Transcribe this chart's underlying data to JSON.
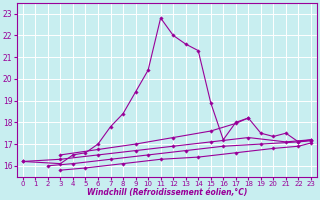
{
  "background_color": "#c8eef0",
  "grid_color": "#ffffff",
  "line_color": "#990099",
  "xlabel": "Windchill (Refroidissement éolien,°C)",
  "xlim": [
    -0.5,
    23.5
  ],
  "ylim": [
    15.5,
    23.5
  ],
  "yticks": [
    16,
    17,
    18,
    19,
    20,
    21,
    22,
    23
  ],
  "xticks": [
    0,
    1,
    2,
    3,
    4,
    5,
    6,
    7,
    8,
    9,
    10,
    11,
    12,
    13,
    14,
    15,
    16,
    17,
    18,
    19,
    20,
    21,
    22,
    23
  ],
  "series": [
    {
      "x": [
        0,
        3,
        4,
        5,
        6,
        7,
        8,
        9,
        10,
        11,
        12,
        13,
        14,
        15,
        16,
        17,
        18
      ],
      "y": [
        16.2,
        16.1,
        16.5,
        16.6,
        17.0,
        17.8,
        18.4,
        19.4,
        20.4,
        22.8,
        22.0,
        21.6,
        21.3,
        18.9,
        17.2,
        18.0,
        18.2
      ]
    },
    {
      "x": [
        0,
        3,
        6,
        9,
        12,
        15,
        18,
        21,
        23
      ],
      "y": [
        16.2,
        16.3,
        16.5,
        16.7,
        16.9,
        17.1,
        17.3,
        17.1,
        17.2
      ]
    },
    {
      "x": [
        2,
        4,
        7,
        10,
        13,
        16,
        19,
        22,
        23
      ],
      "y": [
        16.0,
        16.1,
        16.3,
        16.5,
        16.7,
        16.9,
        17.0,
        17.1,
        17.15
      ]
    },
    {
      "x": [
        3,
        5,
        8,
        11,
        14,
        17,
        20,
        22,
        23
      ],
      "y": [
        15.8,
        15.9,
        16.1,
        16.3,
        16.4,
        16.6,
        16.8,
        16.9,
        17.05
      ]
    },
    {
      "x": [
        3,
        6,
        9,
        12,
        15,
        17,
        18,
        19,
        20,
        21,
        22,
        23
      ],
      "y": [
        16.5,
        16.75,
        17.0,
        17.3,
        17.6,
        17.95,
        18.2,
        17.5,
        17.35,
        17.5,
        17.1,
        17.2
      ]
    }
  ]
}
